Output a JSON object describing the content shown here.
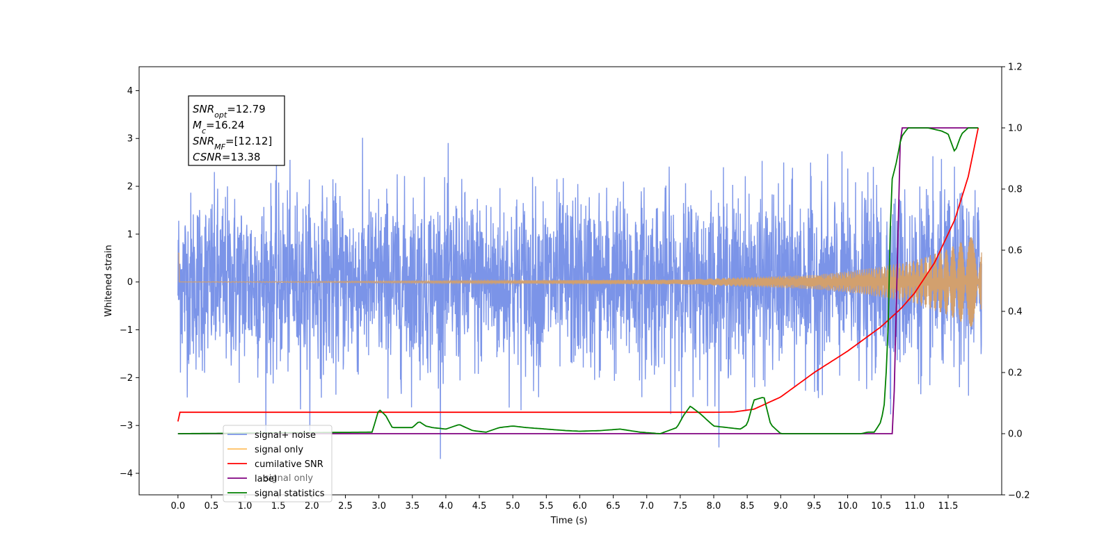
{
  "chart_data": {
    "type": "line",
    "xlabel": "Time (s)",
    "ylabel": "Whitened strain",
    "xlim": [
      -0.58,
      12.3
    ],
    "ylim": [
      -4.45,
      4.5
    ],
    "y2lim": [
      -0.2,
      1.2
    ],
    "x_ticks": [
      "0.0",
      "0.5",
      "1.0",
      "1.5",
      "2.0",
      "2.5",
      "3.0",
      "3.5",
      "4.0",
      "4.5",
      "5.0",
      "5.5",
      "6.0",
      "6.5",
      "7.0",
      "7.5",
      "8.0",
      "8.5",
      "9.0",
      "9.5",
      "10.0",
      "10.5",
      "11.0",
      "11.5"
    ],
    "y_ticks": [
      "−4",
      "−3",
      "−2",
      "−1",
      "0",
      "1",
      "2",
      "3",
      "4"
    ],
    "y2_ticks": [
      "−0.2",
      "0.0",
      "0.2",
      "0.4",
      "0.6",
      "0.8",
      "1.0",
      "1.2"
    ],
    "annotation": {
      "lines": [
        {
          "base": "SNR",
          "sub": "opt",
          "value": "=12.79"
        },
        {
          "base": "M",
          "sub": "c",
          "value": "=16.24"
        },
        {
          "base": "SNR",
          "sub": "MF",
          "value": "=[12.12]"
        },
        {
          "base": "CSNR",
          "sub": "",
          "value": "=13.38"
        }
      ]
    },
    "legend": {
      "placement": "lower-left",
      "entries": [
        {
          "name": "signal+ noise",
          "color": "#7b94e8"
        },
        {
          "name": "signal only",
          "color": "#ffbf5f"
        },
        {
          "name": "cumilative SNR",
          "color": "#ff0000"
        },
        {
          "name": "label",
          "color": "#800080"
        },
        {
          "name": "signal statistics",
          "color": "#008000"
        }
      ]
    },
    "hidden_label": "signal only",
    "series": [
      {
        "name": "signal+ noise",
        "axis": "left",
        "color": "#7b94e8",
        "x_range": [
          0.0,
          12.0
        ],
        "description_level": "white noise, std ~0.9, peaks ~±4"
      },
      {
        "name": "signal only",
        "axis": "left",
        "color": "#d2a06e",
        "x": [
          0.0,
          7.5,
          8.5,
          9.5,
          10.0,
          10.5,
          11.0,
          11.5,
          12.0
        ],
        "envelope": [
          0.0,
          0.05,
          0.1,
          0.15,
          0.22,
          0.32,
          0.45,
          0.7,
          1.05
        ]
      },
      {
        "name": "cumilative SNR",
        "axis": "right",
        "color": "#ff0000",
        "x": [
          0.0,
          0.01,
          8.0,
          8.3,
          8.6,
          9.0,
          9.5,
          10.0,
          10.5,
          10.8,
          11.0,
          11.3,
          11.6,
          11.8,
          11.95
        ],
        "y": [
          0.04,
          0.07,
          0.07,
          0.071,
          0.08,
          0.12,
          0.2,
          0.27,
          0.35,
          0.41,
          0.46,
          0.56,
          0.7,
          0.84,
          1.0
        ]
      },
      {
        "name": "label",
        "axis": "right",
        "color": "#800080",
        "x": [
          0.0,
          10.68,
          10.79,
          11.95
        ],
        "y": [
          0.0,
          0.0,
          1.0,
          1.0
        ]
      },
      {
        "name": "signal statistics",
        "axis": "right",
        "color": "#008000",
        "x": [
          0.0,
          2.9,
          3.0,
          3.1,
          3.2,
          3.5,
          3.6,
          3.7,
          3.8,
          4.0,
          4.2,
          4.4,
          4.6,
          4.8,
          5.0,
          5.2,
          5.5,
          5.8,
          6.0,
          6.3,
          6.6,
          6.9,
          7.2,
          7.45,
          7.55,
          7.65,
          7.8,
          8.0,
          8.2,
          8.4,
          8.5,
          8.6,
          8.75,
          8.85,
          9.0,
          9.5,
          10.0,
          10.2,
          10.3,
          10.4,
          10.5,
          10.55,
          10.6,
          10.65,
          10.72,
          10.8,
          10.9,
          11.2,
          11.4,
          11.5,
          11.55,
          11.6,
          11.65,
          11.7,
          11.8,
          11.95
        ],
        "y": [
          0.0,
          0.005,
          0.08,
          0.06,
          0.02,
          0.02,
          0.04,
          0.025,
          0.02,
          0.015,
          0.03,
          0.01,
          0.005,
          0.02,
          0.025,
          0.02,
          0.015,
          0.01,
          0.008,
          0.01,
          0.015,
          0.005,
          0.0,
          0.02,
          0.06,
          0.09,
          0.065,
          0.025,
          0.02,
          0.015,
          0.03,
          0.11,
          0.12,
          0.03,
          0.0,
          0.0,
          0.0,
          0.0,
          0.005,
          0.005,
          0.04,
          0.1,
          0.3,
          0.82,
          0.88,
          0.97,
          1.0,
          1.0,
          0.99,
          0.98,
          0.95,
          0.92,
          0.95,
          0.98,
          1.0,
          1.0
        ]
      }
    ]
  }
}
